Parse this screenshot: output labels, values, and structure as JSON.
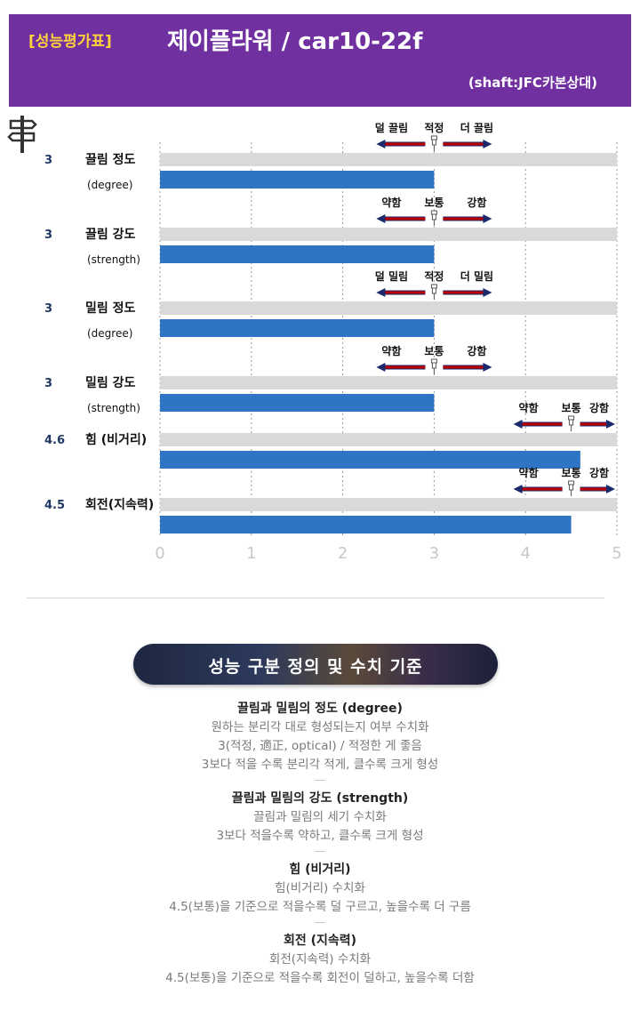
{
  "header": {
    "tag": "[성능평가표]",
    "title": "제이플라워 / car10-22f",
    "subtitle": "(shaft:JFC카본상대)"
  },
  "colors": {
    "header_bg": "#7030a0",
    "tag_text": "#ffd43b",
    "bar": "#2e75c6",
    "track": "#d9d9d9",
    "arrow": "#c00000",
    "score": "#1f3864"
  },
  "icons": {
    "signpost": "signpost-icon",
    "pin": "pushpin-icon"
  },
  "chart_data": {
    "type": "bar",
    "orientation": "horizontal",
    "xlim": [
      0,
      5
    ],
    "xticks": [
      "0",
      "1",
      "2",
      "3",
      "4",
      "5"
    ],
    "grid": true,
    "rows": [
      {
        "score": "3",
        "value": 3,
        "label": "끌림 정도",
        "sublabel": "(degree)",
        "scale": [
          "덜 끌림",
          "적정",
          "더 끌림"
        ],
        "center": 3
      },
      {
        "score": "3",
        "value": 3,
        "label": "끌림 강도",
        "sublabel": "(strength)",
        "scale": [
          "약함",
          "보통",
          "강함"
        ],
        "center": 3
      },
      {
        "score": "3",
        "value": 3,
        "label": "밀림 정도",
        "sublabel": "(degree)",
        "scale": [
          "덜 밀림",
          "적정",
          "더 밀림"
        ],
        "center": 3
      },
      {
        "score": "3",
        "value": 3,
        "label": "밀림 강도",
        "sublabel": "(strength)",
        "scale": [
          "약함",
          "보통",
          "강함"
        ],
        "center": 3
      },
      {
        "score": "4.6",
        "value": 4.6,
        "label": "힘 (비거리)",
        "sublabel": "",
        "scale": [
          "약함",
          "보통",
          "강함"
        ],
        "center": 4.5
      },
      {
        "score": "4.5",
        "value": 4.5,
        "label": "회전(지속력)",
        "sublabel": "",
        "scale": [
          "약함",
          "보통",
          "강함"
        ],
        "center": 4.5
      }
    ]
  },
  "section": {
    "title": "성능 구분 정의 및 수치 기준",
    "blocks": [
      {
        "title": "끌림과 밀림의 정도 (degree)",
        "lines": [
          "원하는 분리각 대로 형성되는지 여부 수치화",
          "3(적정, 適正, optical) / 적정한 게 좋음",
          "3보다 적을 수록 분리각 적게, 클수록 크게 형성"
        ]
      },
      {
        "title": "끌림과 밀림의 강도 (strength)",
        "lines": [
          "끌림과 밀림의 세기 수치화",
          "3보다 적을수록 약하고, 클수록 크게 형성"
        ]
      },
      {
        "title": "힘 (비거리)",
        "lines": [
          "힘(비거리) 수치화",
          "4.5(보통)을 기준으로 적을수록 덜 구르고, 높을수록 더 구름"
        ]
      },
      {
        "title": "회전 (지속력)",
        "lines": [
          "회전(지속력) 수치화",
          "4.5(보통)을 기준으로 적을수록 회전이 덜하고, 높을수록 더함"
        ]
      }
    ],
    "separator": "—"
  }
}
